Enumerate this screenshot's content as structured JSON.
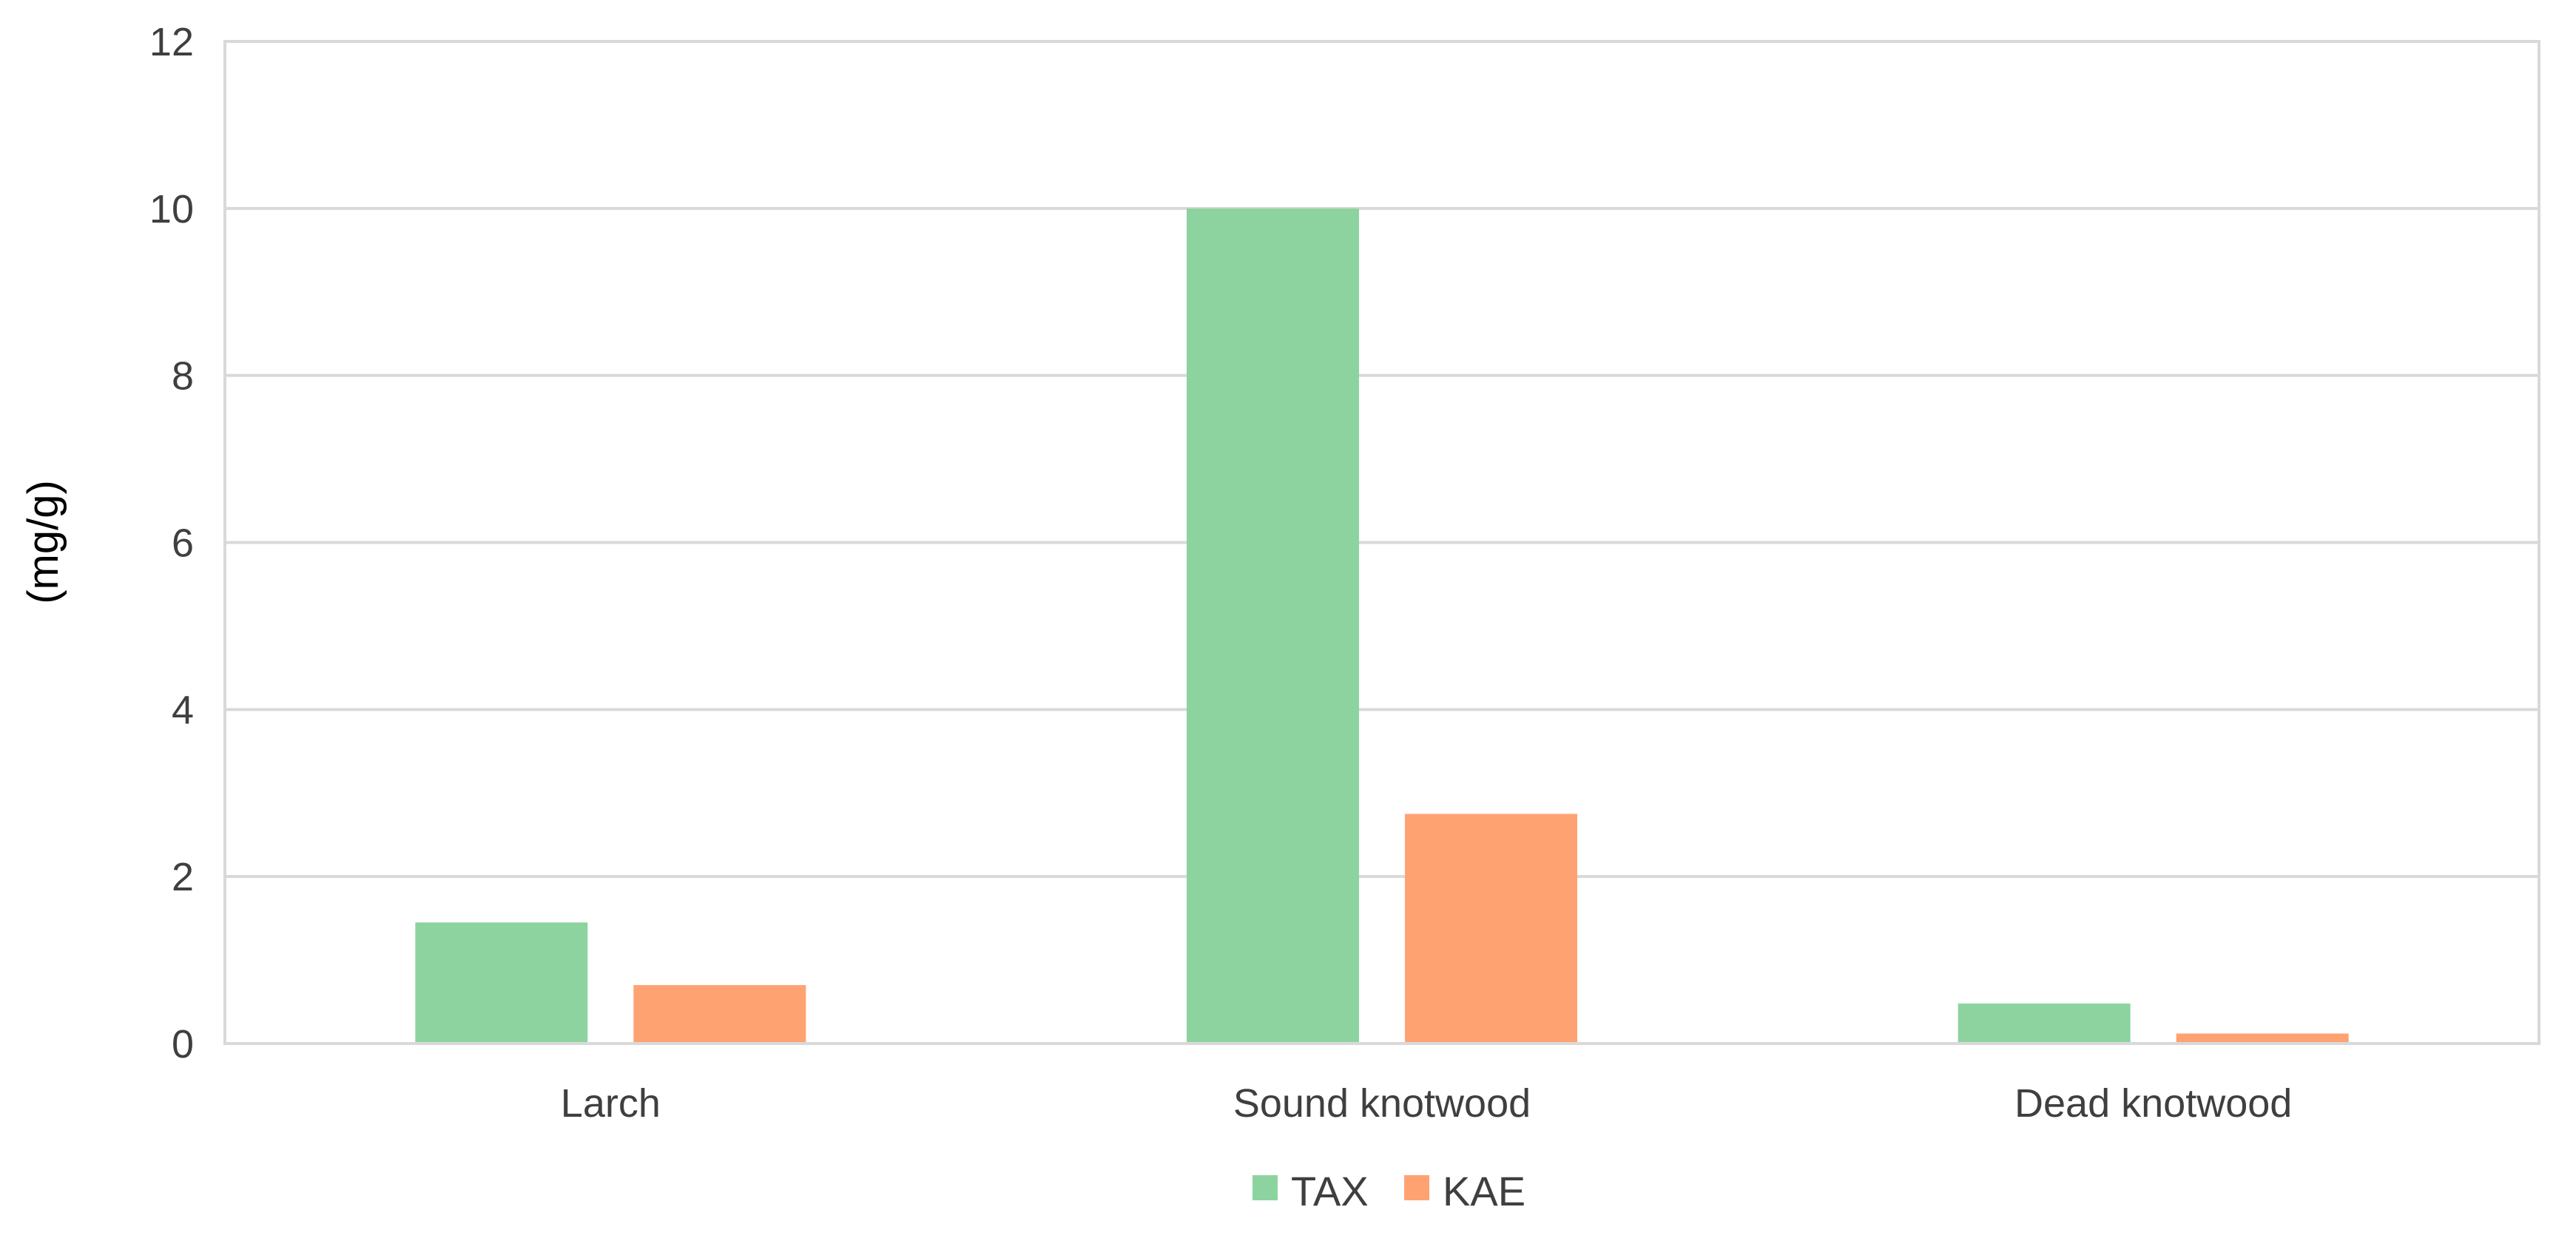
{
  "chart_data": {
    "type": "bar",
    "title": "",
    "xlabel": "",
    "ylabel": "(mg/g)",
    "categories": [
      "Larch",
      "Sound knotwood",
      "Dead knotwood"
    ],
    "series": [
      {
        "name": "TAX",
        "color": "#8dd3a0",
        "values": [
          1.45,
          10.0,
          0.48
        ]
      },
      {
        "name": "KAE",
        "color": "#ffa272",
        "values": [
          0.7,
          2.75,
          0.12
        ]
      }
    ],
    "ylim": [
      0,
      12
    ],
    "yticks": [
      "0",
      "2",
      "4",
      "6",
      "8",
      "10",
      "12"
    ],
    "grid": true,
    "legend_position": "bottom-center"
  }
}
